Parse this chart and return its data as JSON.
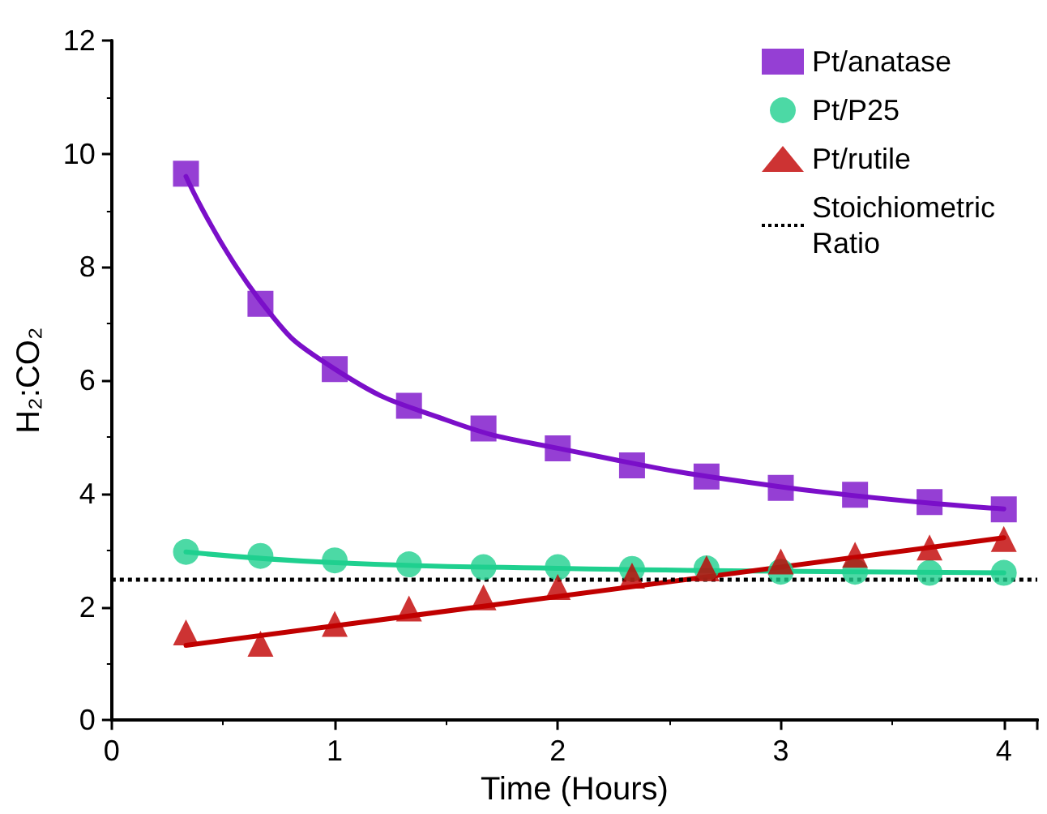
{
  "chart_data": {
    "type": "scatter",
    "xlabel": "Time (Hours)",
    "ylabel": "H₂:CO₂",
    "xlim": [
      0,
      4.15
    ],
    "xticks": [
      0,
      1,
      2,
      3,
      4
    ],
    "ylim": [
      0,
      12
    ],
    "yticks": [
      0,
      2,
      4,
      6,
      8,
      10,
      12
    ],
    "grid": false,
    "legend": "top right",
    "x": [
      0.333,
      0.667,
      1,
      1.333,
      1.667,
      2,
      2.333,
      2.667,
      3,
      3.333,
      3.667,
      4
    ],
    "series": [
      {
        "name": "Pt/anatase",
        "color": "#7b0fc9",
        "marker": "square",
        "values": [
          9.65,
          7.35,
          6.2,
          5.55,
          5.15,
          4.8,
          4.5,
          4.3,
          4.1,
          3.98,
          3.85,
          3.72
        ]
      },
      {
        "name": "Pt/P25",
        "color": "#1fd08f",
        "marker": "circle",
        "values": [
          2.97,
          2.9,
          2.82,
          2.75,
          2.7,
          2.7,
          2.67,
          2.68,
          2.62,
          2.62,
          2.6,
          2.6
        ]
      },
      {
        "name": "Pt/rutile",
        "color": "#c00000",
        "marker": "triangle",
        "values": [
          1.55,
          1.35,
          1.7,
          1.97,
          2.17,
          2.35,
          2.55,
          2.68,
          2.8,
          2.92,
          3.05,
          3.2
        ]
      },
      {
        "type": "line",
        "color": "#7b0fc9",
        "marker": "none",
        "x": [
          0.333,
          0.667,
          1,
          1.5,
          2,
          3,
          4
        ],
        "values": [
          9.6,
          7.4,
          6.2,
          5.3,
          4.8,
          4.12,
          3.73
        ]
      },
      {
        "type": "line",
        "color": "#1fd08f",
        "marker": "none",
        "x": [
          0.333,
          1,
          2,
          3,
          4
        ],
        "values": [
          2.97,
          2.78,
          2.68,
          2.63,
          2.6
        ]
      },
      {
        "type": "line",
        "color": "#c00000",
        "marker": "none",
        "x": [
          0.333,
          4
        ],
        "values": [
          1.32,
          3.22
        ]
      }
    ],
    "ref_lines": [
      {
        "axis": "y",
        "value": 2.5,
        "label": "Stoichiometric Ratio",
        "color": "#000000",
        "line_style": "dotted"
      }
    ]
  }
}
